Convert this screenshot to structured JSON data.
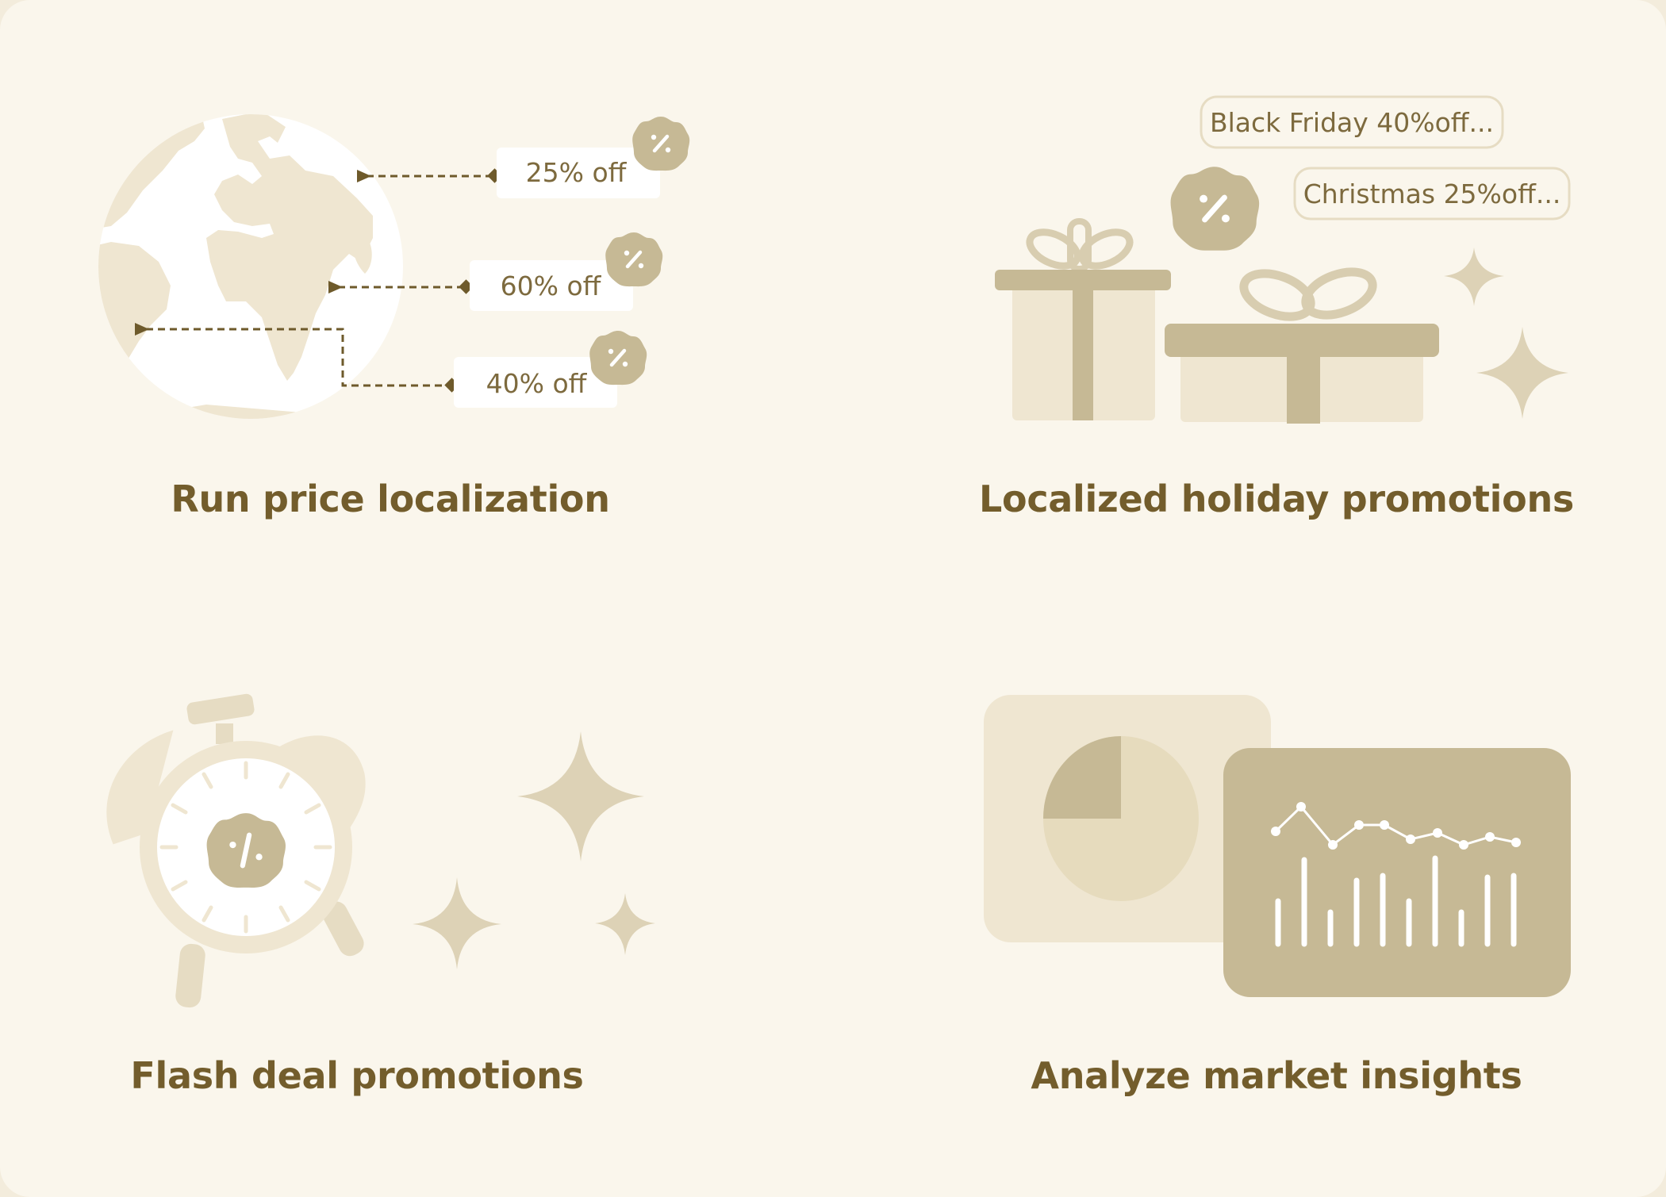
{
  "features": [
    {
      "title": "Run price localization",
      "illustration": "globe-icon",
      "discount_tags": [
        "25% off",
        "60% off",
        "40% off"
      ]
    },
    {
      "title": "Localized holiday promotions",
      "illustration": "gift-boxes-icon",
      "promo_bubbles": [
        "Black Friday 40%off...",
        "Christmas 25%off..."
      ]
    },
    {
      "title": "Flash deal promotions",
      "illustration": "alarm-clock-icon"
    },
    {
      "title": "Analyze market insights",
      "illustration": "dashboard-charts-icon"
    }
  ],
  "colors": {
    "background": "#faf6ec",
    "title": "#735d2c",
    "accent_dark": "#c6b995",
    "accent_light": "#efe6d1",
    "connector": "#6e5a2b"
  }
}
